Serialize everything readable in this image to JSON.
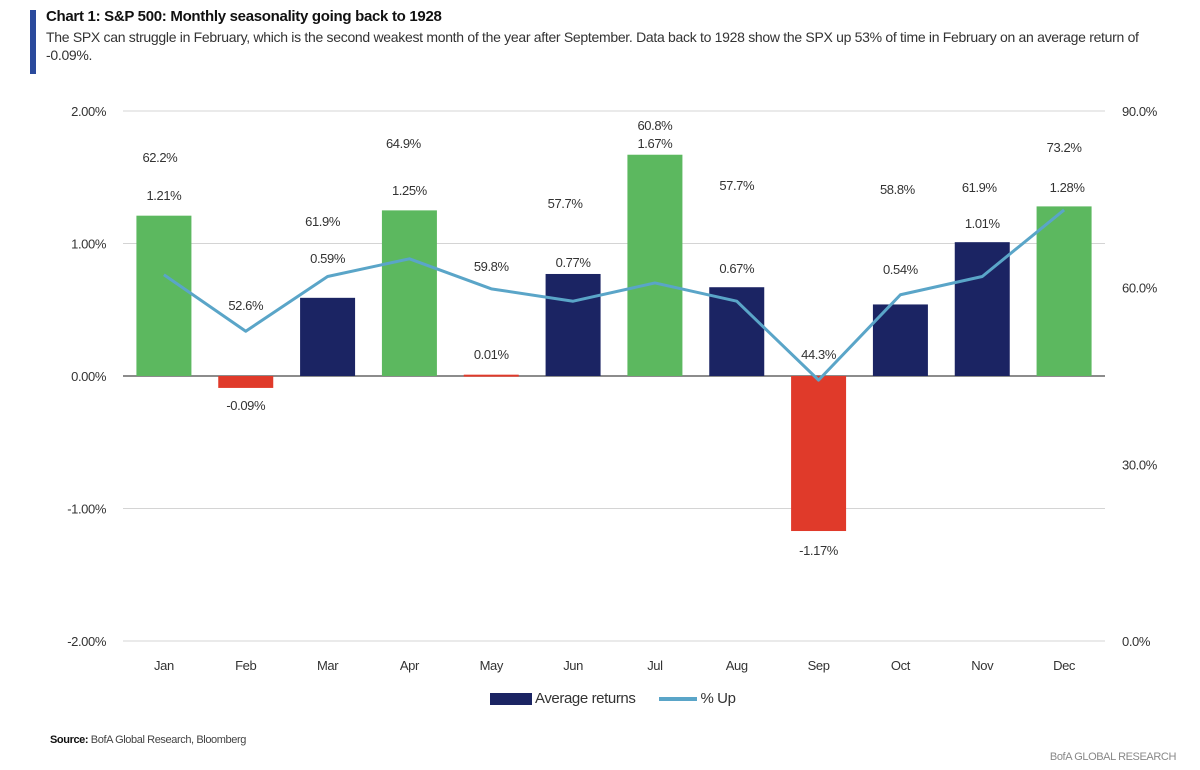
{
  "header": {
    "title": "Chart 1: S&P 500: Monthly seasonality going back to 1928",
    "subtitle": "The SPX can struggle in February, which is the second weakest month of the year after September. Data back to 1928 show the SPX up 53% of time in February on an average return of -0.09%."
  },
  "chart_data": {
    "type": "bar+line",
    "categories": [
      "Jan",
      "Feb",
      "Mar",
      "Apr",
      "May",
      "Jun",
      "Jul",
      "Aug",
      "Sep",
      "Oct",
      "Nov",
      "Dec"
    ],
    "series": [
      {
        "name": "Average returns",
        "type": "bar",
        "axis": "left",
        "values": [
          1.21,
          -0.09,
          0.59,
          1.25,
          0.01,
          0.77,
          1.67,
          0.67,
          -1.17,
          0.54,
          1.01,
          1.28
        ],
        "labels": [
          "1.21%",
          "-0.09%",
          "0.59%",
          "1.25%",
          "0.01%",
          "0.77%",
          "1.67%",
          "0.67%",
          "-1.17%",
          "0.54%",
          "1.01%",
          "1.28%"
        ],
        "colors": [
          "#5cb85f",
          "#e03a2a",
          "#1b2463",
          "#5cb85f",
          "#e03a2a",
          "#1b2463",
          "#5cb85f",
          "#1b2463",
          "#e03a2a",
          "#1b2463",
          "#1b2463",
          "#5cb85f"
        ]
      },
      {
        "name": "% Up",
        "type": "line",
        "axis": "right",
        "color": "#5aa5c8",
        "values": [
          62.2,
          52.6,
          61.9,
          64.9,
          59.8,
          57.7,
          60.8,
          57.7,
          44.3,
          58.8,
          61.9,
          73.2
        ],
        "labels": [
          "62.2%",
          "52.6%",
          "61.9%",
          "64.9%",
          "59.8%",
          "57.7%",
          "60.8%",
          "57.7%",
          "44.3%",
          "58.8%",
          "61.9%",
          "73.2%"
        ]
      }
    ],
    "y_left": {
      "range": [
        -2,
        2
      ],
      "ticks": [
        "2.00%",
        "1.00%",
        "0.00%",
        "-1.00%",
        "-2.00%"
      ],
      "tick_values": [
        2,
        1,
        0,
        -1,
        -2
      ]
    },
    "y_right": {
      "range": [
        0,
        90
      ],
      "ticks": [
        "90.0%",
        "60.0%",
        "30.0%",
        "0.0%"
      ],
      "tick_values": [
        90,
        60,
        30,
        0
      ]
    },
    "grid": true,
    "legend": "bottom-center"
  },
  "legend": {
    "bar_label": "Average returns",
    "line_label": "% Up"
  },
  "footer": {
    "source_label": "Source:",
    "source_text": " BofA Global Research, Bloomberg",
    "brand": "BofA GLOBAL RESEARCH"
  }
}
